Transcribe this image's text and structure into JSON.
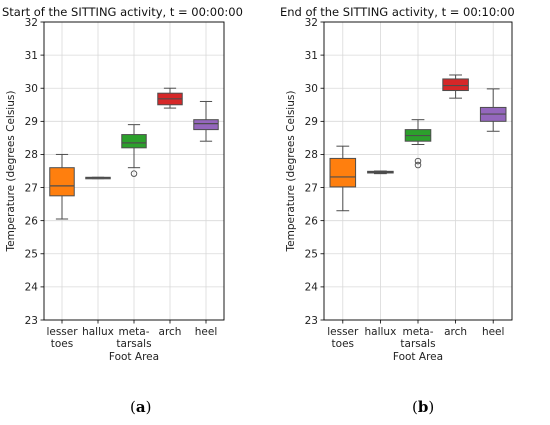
{
  "chart_data": [
    {
      "type": "box",
      "title": "Start of the SITTING activity, t = 00:00:00",
      "xlabel": "Foot Area",
      "ylabel": "Temperature (degrees Celsius)",
      "ylim": [
        23,
        32
      ],
      "yticks": [
        "23",
        "24",
        "25",
        "26",
        "27",
        "28",
        "29",
        "30",
        "31",
        "32"
      ],
      "grid": true,
      "categories": [
        [
          "lesser",
          "toes"
        ],
        [
          "hallux"
        ],
        [
          "meta-",
          "tarsals"
        ],
        [
          "arch"
        ],
        [
          "heel"
        ]
      ],
      "colors": [
        "#ff7f0e",
        "#8c8c8c",
        "#2ca02c",
        "#d62728",
        "#9467bd"
      ],
      "boxes": [
        {
          "whisker_low": 26.05,
          "q1": 26.75,
          "median": 27.05,
          "q3": 27.6,
          "whisker_high": 28.0,
          "outliers": []
        },
        {
          "whisker_low": 27.27,
          "q1": 27.27,
          "median": 27.3,
          "q3": 27.31,
          "whisker_high": 27.31,
          "outliers": []
        },
        {
          "whisker_low": 27.6,
          "q1": 28.2,
          "median": 28.35,
          "q3": 28.6,
          "whisker_high": 28.9,
          "outliers": [
            27.42
          ]
        },
        {
          "whisker_low": 29.4,
          "q1": 29.5,
          "median": 29.68,
          "q3": 29.85,
          "whisker_high": 30.0,
          "outliers": []
        },
        {
          "whisker_low": 28.4,
          "q1": 28.75,
          "median": 28.93,
          "q3": 29.05,
          "whisker_high": 29.6,
          "outliers": []
        }
      ]
    },
    {
      "type": "box",
      "title": "End of the SITTING activity, t = 00:10:00",
      "xlabel": "Foot Area",
      "ylabel": "Temperature (degrees Celsius)",
      "ylim": [
        23,
        32
      ],
      "yticks": [
        "23",
        "24",
        "25",
        "26",
        "27",
        "28",
        "29",
        "30",
        "31",
        "32"
      ],
      "grid": true,
      "categories": [
        [
          "lesser",
          "toes"
        ],
        [
          "hallux"
        ],
        [
          "meta-",
          "tarsals"
        ],
        [
          "arch"
        ],
        [
          "heel"
        ]
      ],
      "colors": [
        "#ff7f0e",
        "#8c8c8c",
        "#2ca02c",
        "#d62728",
        "#9467bd"
      ],
      "boxes": [
        {
          "whisker_low": 26.3,
          "q1": 27.02,
          "median": 27.32,
          "q3": 27.88,
          "whisker_high": 28.25,
          "outliers": []
        },
        {
          "whisker_low": 27.42,
          "q1": 27.44,
          "median": 27.47,
          "q3": 27.49,
          "whisker_high": 27.5,
          "outliers": []
        },
        {
          "whisker_low": 28.3,
          "q1": 28.4,
          "median": 28.57,
          "q3": 28.75,
          "whisker_high": 29.05,
          "outliers": [
            27.8,
            27.68
          ]
        },
        {
          "whisker_low": 29.7,
          "q1": 29.93,
          "median": 30.08,
          "q3": 30.28,
          "whisker_high": 30.4,
          "outliers": []
        },
        {
          "whisker_low": 28.7,
          "q1": 29.0,
          "median": 29.22,
          "q3": 29.42,
          "whisker_high": 29.98,
          "outliers": []
        }
      ]
    }
  ],
  "panel_labels": [
    "a",
    "b"
  ]
}
